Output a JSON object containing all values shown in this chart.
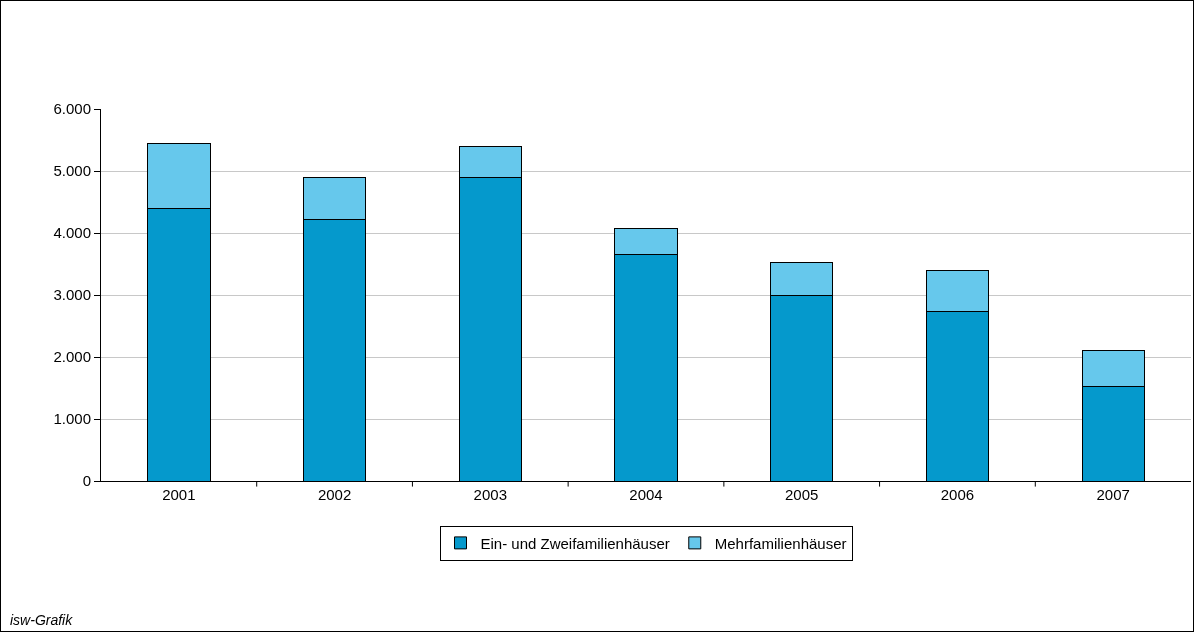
{
  "chart_data": {
    "type": "bar",
    "stacked": true,
    "categories": [
      "2001",
      "2002",
      "2003",
      "2004",
      "2005",
      "2006",
      "2007"
    ],
    "series": [
      {
        "name": "Ein- und Zweifamilienhäuser",
        "color": "#0599cc",
        "values": [
          4400,
          4210,
          4890,
          3660,
          3000,
          2730,
          1520
        ]
      },
      {
        "name": "Mehrfamilienhäuser",
        "color": "#66c8ec",
        "values": [
          1050,
          680,
          510,
          420,
          530,
          660,
          580
        ]
      }
    ],
    "ylim": [
      0,
      6000
    ],
    "yticks": [
      {
        "value": 0,
        "label": "0"
      },
      {
        "value": 1000,
        "label": "1.000"
      },
      {
        "value": 2000,
        "label": "2.000"
      },
      {
        "value": 3000,
        "label": "3.000"
      },
      {
        "value": 4000,
        "label": "4.000"
      },
      {
        "value": 5000,
        "label": "5.000"
      },
      {
        "value": 6000,
        "label": "6.000"
      }
    ],
    "grid": "y",
    "legend": "bottom",
    "annotations": [
      "isw-Grafik"
    ]
  }
}
